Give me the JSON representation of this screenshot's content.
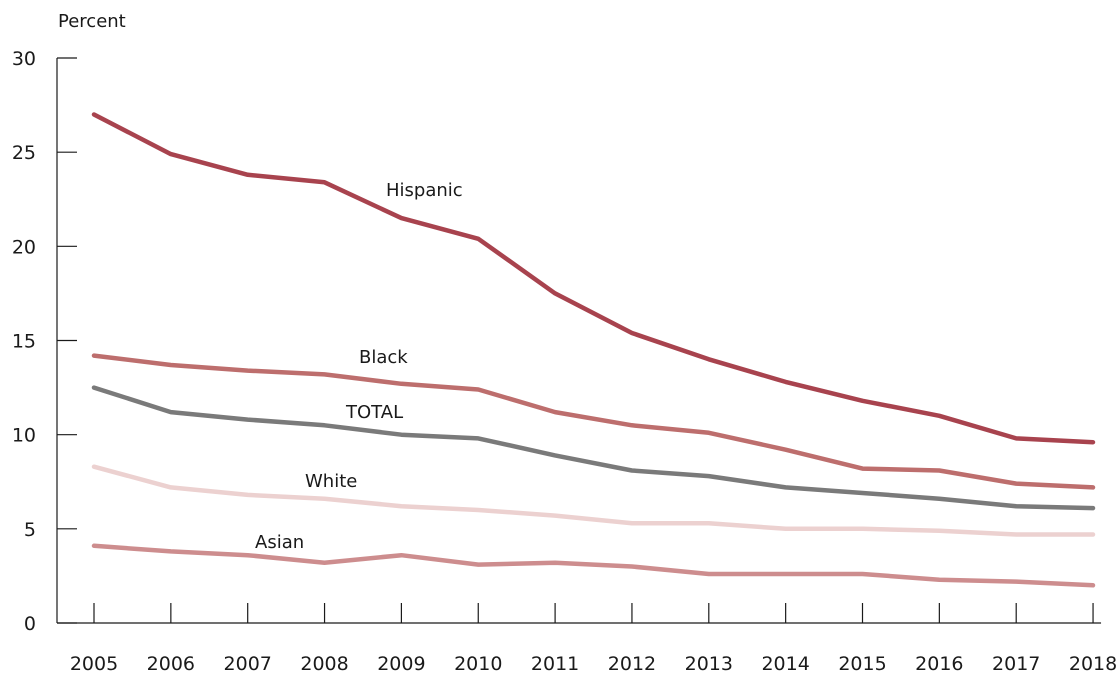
{
  "chart_data": {
    "type": "line",
    "ylabel": "Percent",
    "ylim": [
      0,
      30
    ],
    "yticks": [
      0,
      5,
      10,
      15,
      20,
      25,
      30
    ],
    "x": [
      "2005",
      "2006",
      "2007",
      "2008",
      "2009",
      "2010",
      "2011",
      "2012",
      "2013",
      "2014",
      "2015",
      "2016",
      "2017",
      "2018"
    ],
    "series": [
      {
        "name": "Hispanic",
        "color": "#a8434e",
        "values": [
          27.0,
          24.9,
          23.8,
          23.4,
          21.5,
          20.4,
          17.5,
          15.4,
          14.0,
          12.8,
          11.8,
          11.0,
          9.8,
          9.6
        ]
      },
      {
        "name": "Black",
        "color": "#bd6e6d",
        "values": [
          14.2,
          13.7,
          13.4,
          13.2,
          12.7,
          12.4,
          11.2,
          10.5,
          10.1,
          9.2,
          8.2,
          8.1,
          7.4,
          7.2
        ]
      },
      {
        "name": "TOTAL",
        "color": "#7a7a7a",
        "values": [
          12.5,
          11.2,
          10.8,
          10.5,
          10.0,
          9.8,
          8.9,
          8.1,
          7.8,
          7.2,
          6.9,
          6.6,
          6.2,
          6.1
        ]
      },
      {
        "name": "White",
        "color": "#ecd1d0",
        "values": [
          8.3,
          7.2,
          6.8,
          6.6,
          6.2,
          6.0,
          5.7,
          5.3,
          5.3,
          5.0,
          5.0,
          4.9,
          4.7,
          4.7
        ]
      },
      {
        "name": "Asian",
        "color": "#cd8d8e",
        "values": [
          4.1,
          3.8,
          3.6,
          3.2,
          3.6,
          3.1,
          3.2,
          3.0,
          2.6,
          2.6,
          2.6,
          2.3,
          2.2,
          2.0
        ]
      }
    ]
  }
}
